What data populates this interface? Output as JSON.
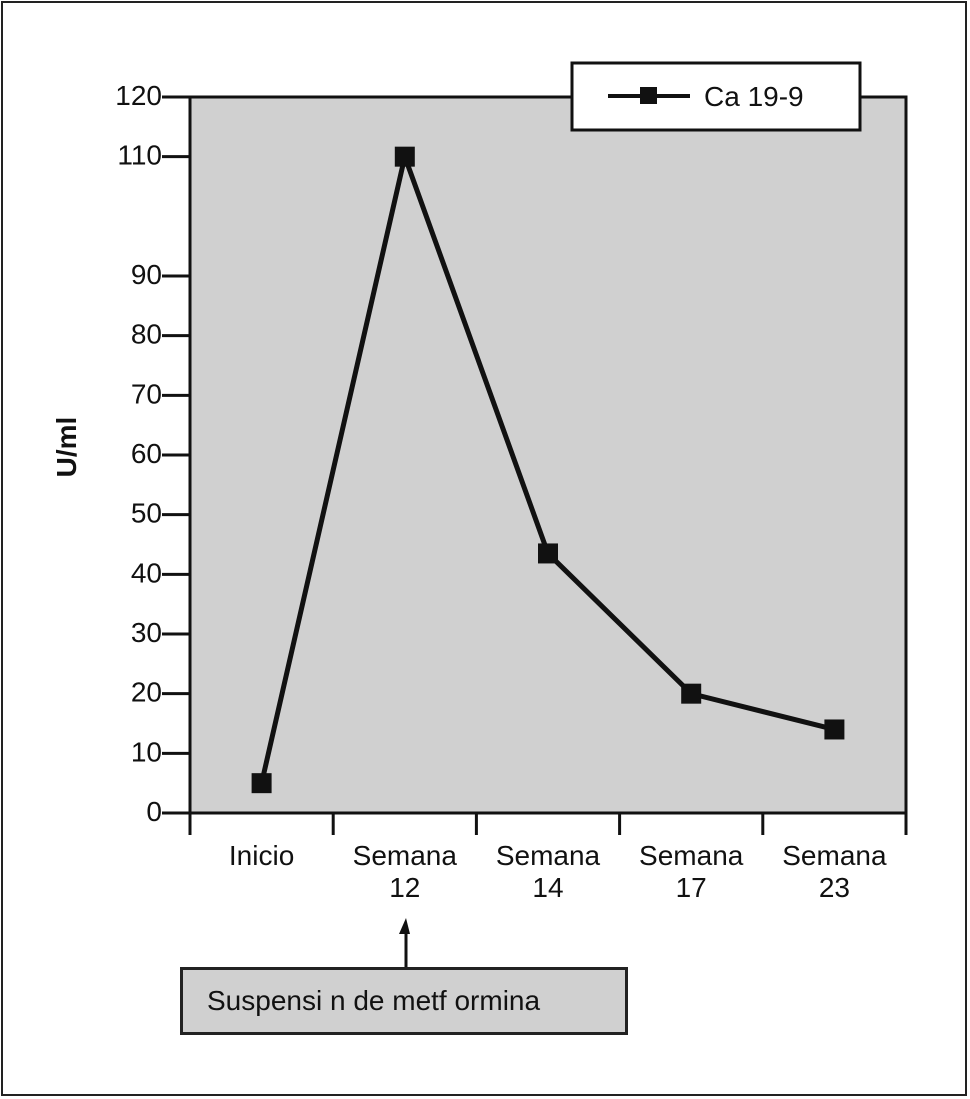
{
  "chart_data": {
    "type": "line",
    "ylabel": "U/ml",
    "ylim": [
      0,
      120
    ],
    "y_ticks": [
      0,
      10,
      20,
      30,
      40,
      50,
      60,
      70,
      80,
      90,
      110,
      120
    ],
    "categories": [
      "Inicio",
      "Semana 12",
      "Semana 14",
      "Semana 17",
      "Semana 23"
    ],
    "category_lines": [
      [
        "Inicio"
      ],
      [
        "Semana",
        "12"
      ],
      [
        "Semana",
        "14"
      ],
      [
        "Semana",
        "17"
      ],
      [
        "Semana",
        "23"
      ]
    ],
    "series": [
      {
        "name": "Ca 19-9",
        "values": [
          5,
          110,
          43.5,
          20,
          14
        ]
      }
    ],
    "legend": {
      "position": "top-right",
      "label": "Ca 19-9"
    },
    "grid": false,
    "annotation": {
      "text": "Suspensi n de metf ormina",
      "target": "Semana 12"
    },
    "colors": {
      "plot_background": "#d0d0d0",
      "line": "#111111"
    }
  }
}
